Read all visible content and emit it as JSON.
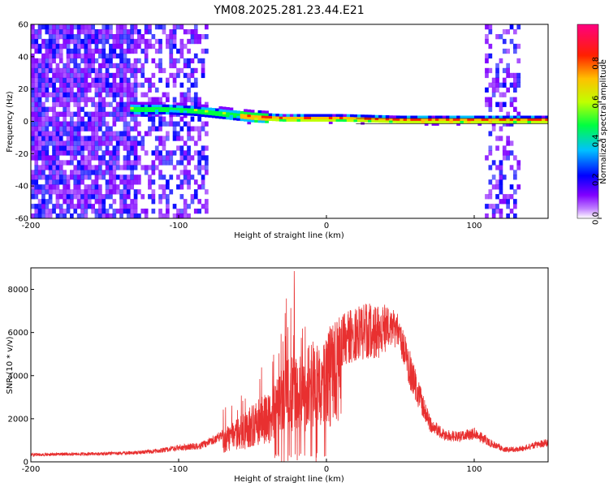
{
  "title": "YM08.2025.281.23.44.E21",
  "chart_data": [
    {
      "type": "heatmap",
      "xlabel": "Height of straight line (km)",
      "ylabel": "Frequency (Hz)",
      "xlim": [
        -200,
        150
      ],
      "ylim": [
        -60,
        60
      ],
      "xticks": [
        -200,
        -100,
        0,
        100
      ],
      "yticks": [
        60,
        40,
        20,
        0,
        -20,
        -40,
        -60
      ],
      "colorbar": {
        "label": "Normalized spectral amplitude",
        "range": [
          0.0,
          1.0
        ],
        "ticks": [
          "0.0",
          "0.2",
          "0.4",
          "0.6",
          "0.8"
        ],
        "tick_values": [
          0.0,
          0.2,
          0.4,
          0.6,
          0.8
        ],
        "colors": [
          "#ffffff",
          "#8000ff",
          "#0000ff",
          "#00ffff",
          "#00ff00",
          "#ffff00",
          "#ff8000",
          "#ff0000",
          "#ff00a0"
        ]
      },
      "ridge": {
        "description_points_x": [
          -155,
          -130,
          -110,
          -90,
          -70,
          -50,
          -30,
          -10,
          10,
          50,
          100,
          150
        ],
        "description_points_f": [
          8,
          7,
          7,
          6,
          4,
          2,
          1,
          1,
          1,
          0,
          0,
          0
        ]
      }
    },
    {
      "type": "line",
      "xlabel": "Height of straight line (km)",
      "ylabel": "SNR (10 * v/v)",
      "xlim": [
        -200,
        150
      ],
      "ylim": [
        0,
        9000
      ],
      "xticks": [
        -200,
        -100,
        0,
        100
      ],
      "yticks": [
        0,
        2000,
        4000,
        6000,
        8000
      ],
      "color": "#e83030",
      "envelope": {
        "x": [
          -200,
          -160,
          -130,
          -110,
          -100,
          -85,
          -75,
          -60,
          -48,
          -40,
          -32,
          -25,
          -20,
          -15,
          -8,
          0,
          10,
          20,
          30,
          40,
          48,
          55,
          60,
          65,
          70,
          80,
          90,
          100,
          110,
          120,
          130,
          140,
          150
        ],
        "y": [
          400,
          450,
          500,
          650,
          800,
          900,
          1300,
          2000,
          2800,
          3200,
          4000,
          5200,
          4800,
          5400,
          5800,
          6200,
          6800,
          7200,
          7400,
          7300,
          7000,
          5500,
          4400,
          3200,
          2100,
          1500,
          1400,
          1600,
          1100,
          700,
          700,
          900,
          1100
        ]
      }
    }
  ]
}
